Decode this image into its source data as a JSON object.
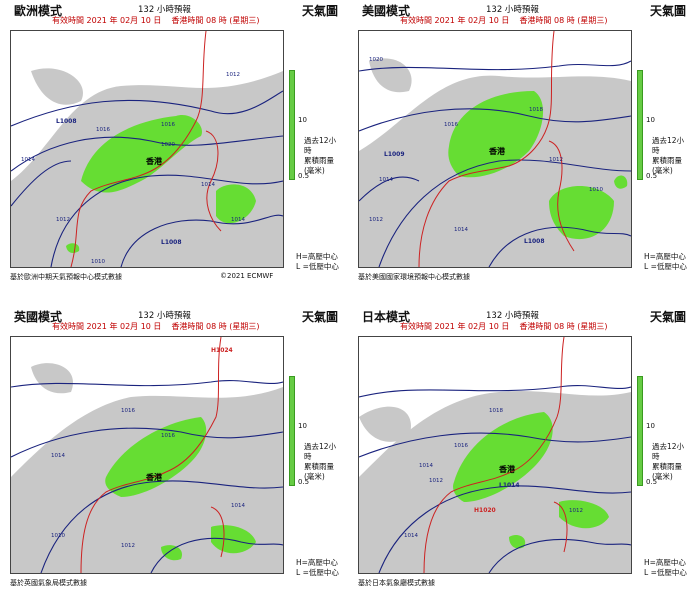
{
  "panels": [
    {
      "model": "歐洲模式",
      "forecast": "132 小時預報",
      "title": "天氣圖",
      "valid_time": "有效時間 2021 年 02月 10 日",
      "hk_time": "香港時間 08 時 (星期三)",
      "footer": "基於歐洲中期天氣預報中心模式數據",
      "copyright": "©2021 ECMWF",
      "hk_label": "香港",
      "isobar_labels": [
        "1012",
        "1016",
        "1020",
        "1014",
        "1014",
        "1012",
        "1014",
        "1010",
        "1016"
      ],
      "centers": [
        "L1008",
        "L1008"
      ]
    },
    {
      "model": "美國模式",
      "forecast": "132 小時預報",
      "title": "天氣圖",
      "valid_time": "有效時間 2021 年 02月 10 日",
      "hk_time": "香港時間 08 時 (星期三)",
      "footer": "基於美國國家環境預報中心模式數據",
      "copyright": "",
      "hk_label": "香港",
      "isobar_labels": [
        "1020",
        "1016",
        "1018",
        "1014",
        "1012",
        "1014",
        "1010",
        "1012"
      ],
      "centers": [
        "L1008",
        "L1009"
      ]
    },
    {
      "model": "英國模式",
      "forecast": "132 小時預報",
      "title": "天氣圖",
      "valid_time": "有效時間 2021 年 02月 10 日",
      "hk_time": "香港時間 08 時 (星期三)",
      "footer": "基於英國氣象局模式數據",
      "copyright": "",
      "hk_label": "香港",
      "isobar_labels": [
        "1016",
        "1016",
        "1014",
        "1012",
        "1010",
        "1014"
      ],
      "centers": [
        "H1024"
      ]
    },
    {
      "model": "日本模式",
      "forecast": "132 小時預報",
      "title": "天氣圖",
      "valid_time": "有效時間 2021 年 02月 10 日",
      "hk_time": "香港時間 08 時 (星期三)",
      "footer": "基於日本氣象廳模式數據",
      "copyright": "",
      "hk_label": "香港",
      "isobar_labels": [
        "1018",
        "1016",
        "1014",
        "1012",
        "1014",
        "1012"
      ],
      "centers": [
        "L1014",
        "H1020"
      ]
    }
  ],
  "legend": {
    "rain_title_1": "過去12小時",
    "rain_title_2": "累積雨量(毫米)",
    "tick_high": "10",
    "tick_low": "0.5",
    "high_center": "H=高壓中心",
    "low_center": "L =低壓中心"
  },
  "colors": {
    "rain": "#66dd33",
    "cloud": "#c8c8c8",
    "isobar": "#1a237e",
    "coast": "#cc2222",
    "header_red": "#c00000"
  }
}
